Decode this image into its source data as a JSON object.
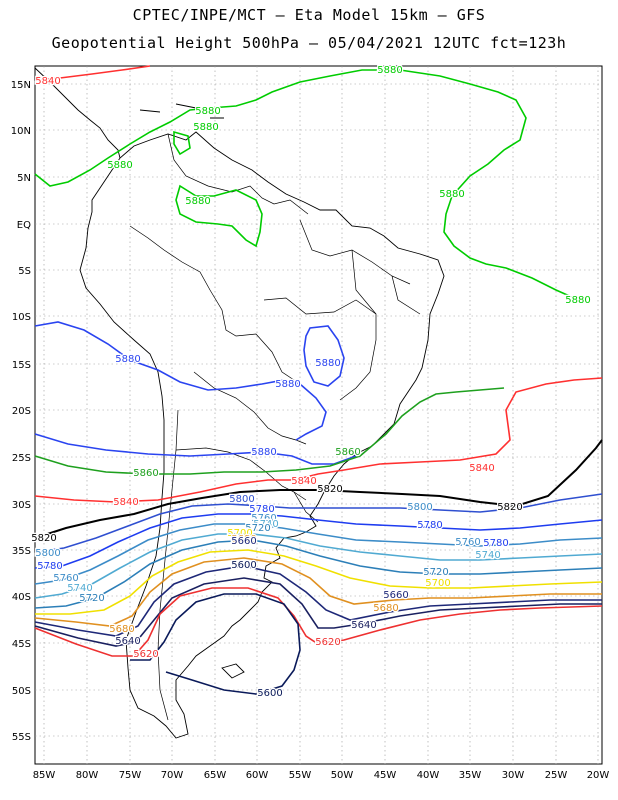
{
  "title_line1": "CPTEC/INPE/MCT —  Eta Model 15km — GFS",
  "title_line2": "Geopotential Height 500hPa — 05/04/2021 12UTC fct=123h",
  "lat_ticks": [
    "15N",
    "10N",
    "5N",
    "EQ",
    "5S",
    "10S",
    "15S",
    "20S",
    "25S",
    "30S",
    "35S",
    "40S",
    "45S",
    "50S",
    "55S"
  ],
  "lon_ticks": [
    "85W",
    "80W",
    "75W",
    "70W",
    "65W",
    "60W",
    "55W",
    "50W",
    "45W",
    "40W",
    "35W",
    "30W",
    "25W",
    "20W"
  ],
  "colors": {
    "c5880": "#00cc00",
    "c5860": "#1ea01e",
    "c5840": "#ff3030",
    "c5820": "#000000",
    "c5800": "#2f4fd0",
    "c5780": "#1e3cf0",
    "c5760": "#3c8cc8",
    "c5740": "#50aad2",
    "c5720": "#2c7fb8",
    "c5700": "#f0e000",
    "c5680": "#e09020",
    "c5660": "#1e2878",
    "c5640": "#1a2060",
    "c5620": "#ee3030",
    "c5600": "#0a1a5a",
    "blue5880": "#2a44f0"
  },
  "contour_labels": [
    {
      "text": "5880",
      "color": "c5880"
    },
    {
      "text": "5880",
      "color": "c5880"
    },
    {
      "text": "5880",
      "color": "c5880"
    },
    {
      "text": "5880",
      "color": "c5880"
    },
    {
      "text": "5880",
      "color": "c5880"
    },
    {
      "text": "5880",
      "color": "c5880"
    },
    {
      "text": "5880",
      "color": "c5880"
    },
    {
      "text": "5840",
      "color": "c5840"
    },
    {
      "text": "5880",
      "color": "blue5880"
    },
    {
      "text": "5880",
      "color": "blue5880"
    },
    {
      "text": "5880",
      "color": "blue5880"
    },
    {
      "text": "5880",
      "color": "blue5880"
    },
    {
      "text": "5860",
      "color": "c5860"
    },
    {
      "text": "5860",
      "color": "c5860"
    },
    {
      "text": "5840",
      "color": "c5840"
    },
    {
      "text": "5840",
      "color": "c5840"
    },
    {
      "text": "5840",
      "color": "c5840"
    },
    {
      "text": "5820",
      "color": "c5820"
    },
    {
      "text": "5820",
      "color": "c5820"
    },
    {
      "text": "5820",
      "color": "c5820"
    },
    {
      "text": "5800",
      "color": "c5800"
    },
    {
      "text": "5800",
      "color": "c5760"
    },
    {
      "text": "5800",
      "color": "c5760"
    },
    {
      "text": "5780",
      "color": "c5780"
    },
    {
      "text": "5780",
      "color": "c5780"
    },
    {
      "text": "5780",
      "color": "c5780"
    },
    {
      "text": "5780",
      "color": "c5780"
    },
    {
      "text": "5760",
      "color": "c5760"
    },
    {
      "text": "5760",
      "color": "c5760"
    },
    {
      "text": "5760",
      "color": "c5760"
    },
    {
      "text": "5740",
      "color": "c5740"
    },
    {
      "text": "5740",
      "color": "c5740"
    },
    {
      "text": "5740",
      "color": "c5740"
    },
    {
      "text": "5720",
      "color": "c5720"
    },
    {
      "text": "5720",
      "color": "c5720"
    },
    {
      "text": "5720",
      "color": "c5720"
    },
    {
      "text": "5700",
      "color": "c5700"
    },
    {
      "text": "5700",
      "color": "c5700"
    },
    {
      "text": "5680",
      "color": "c5680"
    },
    {
      "text": "5680",
      "color": "c5680"
    },
    {
      "text": "5680",
      "color": "c5680"
    },
    {
      "text": "5660",
      "color": "c5660"
    },
    {
      "text": "5660",
      "color": "c5660"
    },
    {
      "text": "5640",
      "color": "c5640"
    },
    {
      "text": "5640",
      "color": "c5640"
    },
    {
      "text": "5620",
      "color": "c5620"
    },
    {
      "text": "5620",
      "color": "c5620"
    },
    {
      "text": "5600",
      "color": "c5600"
    },
    {
      "text": "5600",
      "color": "c5600"
    }
  ]
}
